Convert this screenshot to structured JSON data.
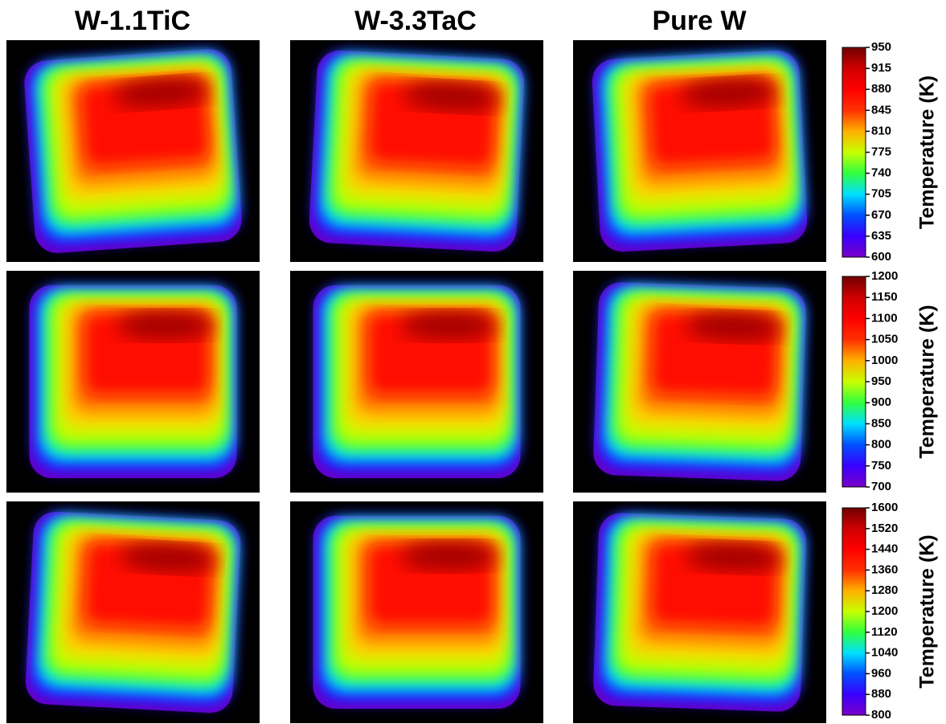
{
  "columns": [
    "W-1.1TiC",
    "W-3.3TaC",
    "Pure W"
  ],
  "colorbars": [
    {
      "label": "Temperature (K)",
      "ticks": [
        600,
        635,
        670,
        705,
        740,
        775,
        810,
        845,
        880,
        915,
        950
      ]
    },
    {
      "label": "Temperature (K)",
      "ticks": [
        700,
        750,
        800,
        850,
        900,
        950,
        1000,
        1050,
        1100,
        1150,
        1200
      ]
    },
    {
      "label": "Temperature (K)",
      "ticks": [
        800,
        880,
        960,
        1040,
        1120,
        1200,
        1280,
        1360,
        1440,
        1520,
        1600
      ]
    }
  ]
}
